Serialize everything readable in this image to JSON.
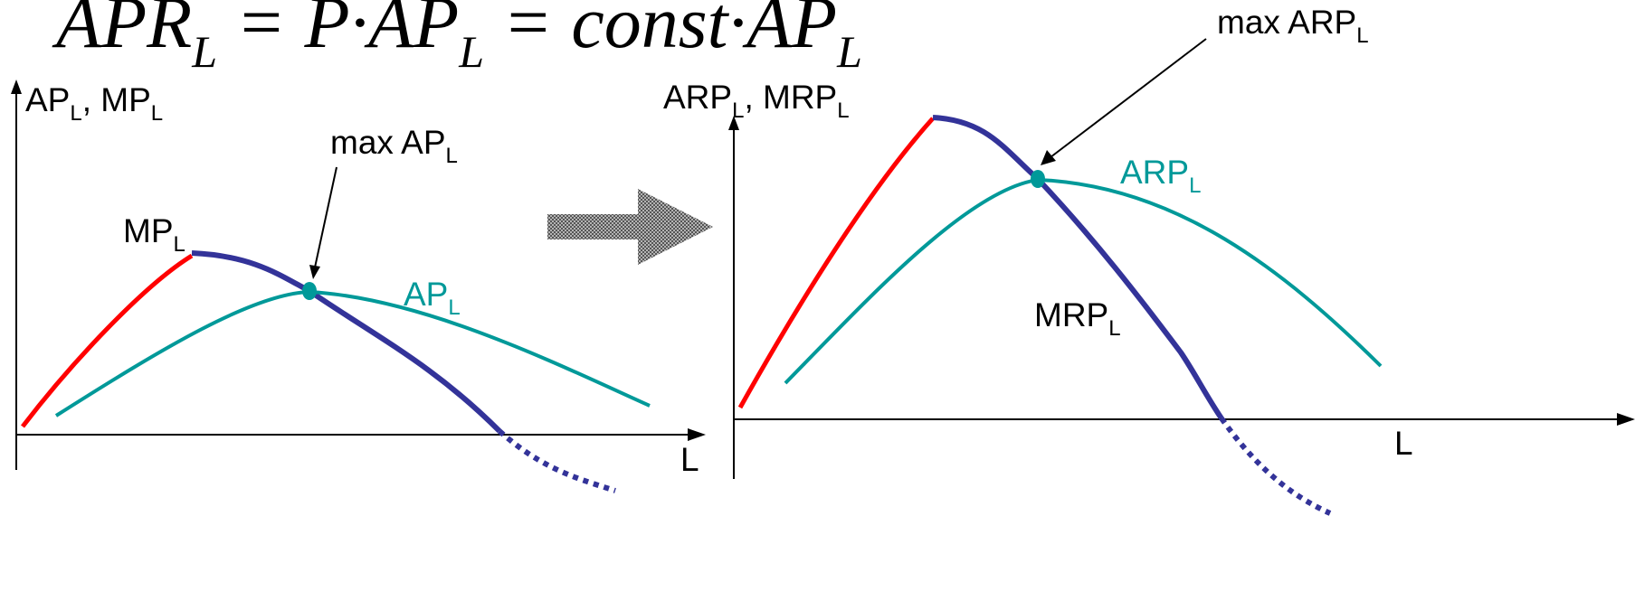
{
  "formula": {
    "apr": "APR",
    "sub": "L",
    "eq1": " = ",
    "p": "P",
    "dot": "·",
    "ap": "AP",
    "eq2": " = ",
    "const": "const",
    "ap2": "AP"
  },
  "left_chart": {
    "y_axis_label": {
      "main": "AP",
      "sub": "L",
      "sep": ", ",
      "main2": "MP",
      "sub2": "L"
    },
    "x_axis_label": "L",
    "mp_label": {
      "main": "MP",
      "sub": "L"
    },
    "ap_label": {
      "main": "AP",
      "sub": "L"
    },
    "max_label": {
      "main": "max AP",
      "sub": "L"
    }
  },
  "right_chart": {
    "y_axis_label": {
      "main": "ARP",
      "sub": "L",
      "sep": ", ",
      "main2": "MRP",
      "sub2": "L"
    },
    "x_axis_label": "L",
    "arp_label": {
      "main": "ARP",
      "sub": "L"
    },
    "mrp_label": {
      "main": "MRP",
      "sub": "L"
    },
    "max_label": {
      "main": "max ARP",
      "sub": "L"
    }
  },
  "colors": {
    "increasing_segment": "#ff0000",
    "marginal_curve": "#333399",
    "average_curve": "#009999",
    "axis": "#000000",
    "arrow_fill": "#8c8c8c"
  }
}
